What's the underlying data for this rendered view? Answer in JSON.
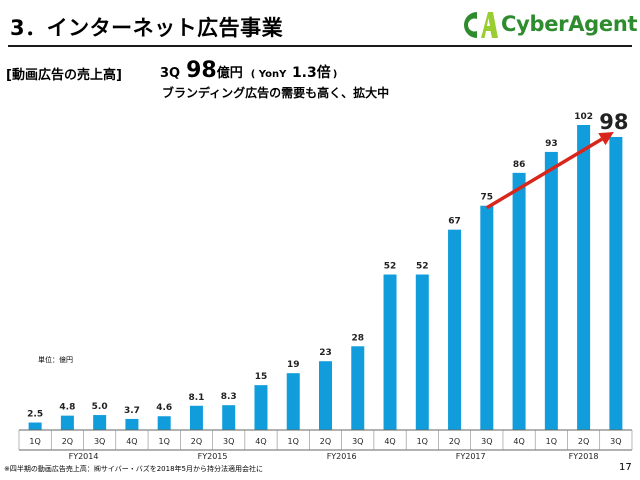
{
  "header": {
    "title": "3．インターネット広告事業",
    "logo_text": "CyberAgent",
    "logo_icon": "cyberagent-ca-logo"
  },
  "summary": {
    "section_label": "[動画広告の売上高]",
    "quarter_label": "3Q",
    "value": "98",
    "value_unit": "億円",
    "yoy_open": "( YonY",
    "yoy_value": "1.3倍",
    "yoy_close": ")",
    "subhead": "ブランディング広告の需要も高く、拡大中"
  },
  "chart_data": {
    "type": "bar",
    "unit_label": "単位：億円",
    "categories": [
      "1Q",
      "2Q",
      "3Q",
      "4Q",
      "1Q",
      "2Q",
      "3Q",
      "4Q",
      "1Q",
      "2Q",
      "3Q",
      "4Q",
      "1Q",
      "2Q",
      "3Q",
      "4Q",
      "1Q",
      "2Q",
      "3Q"
    ],
    "values": [
      2.5,
      4.8,
      5.0,
      3.7,
      4.6,
      8.1,
      8.3,
      15,
      19,
      23,
      28,
      52,
      52,
      67,
      75,
      86,
      93,
      102,
      98
    ],
    "data_labels": [
      "2.5",
      "4.8",
      "5.0",
      "3.7",
      "4.6",
      "8.1",
      "8.3",
      "15",
      "19",
      "23",
      "28",
      "52",
      "52",
      "67",
      "75",
      "86",
      "93",
      "102",
      "98"
    ],
    "fiscal_years": [
      {
        "label": "FY2014",
        "start": 0,
        "count": 4
      },
      {
        "label": "FY2015",
        "start": 4,
        "count": 4
      },
      {
        "label": "FY2016",
        "start": 8,
        "count": 4
      },
      {
        "label": "FY2017",
        "start": 12,
        "count": 4
      },
      {
        "label": "FY2018",
        "start": 16,
        "count": 3
      }
    ],
    "ylim": [
      0,
      102
    ],
    "highlight_last": true,
    "trend_arrow": {
      "from_index": 14,
      "to_index": 18
    },
    "bar_color": "#119ddc",
    "arrow_color": "#d9261c",
    "grid": false
  },
  "footer": {
    "note": "※四半期の動画広告売上高：㈱サイバー・バズを2018年5月から持分法適用会社に",
    "page_number": "17"
  }
}
